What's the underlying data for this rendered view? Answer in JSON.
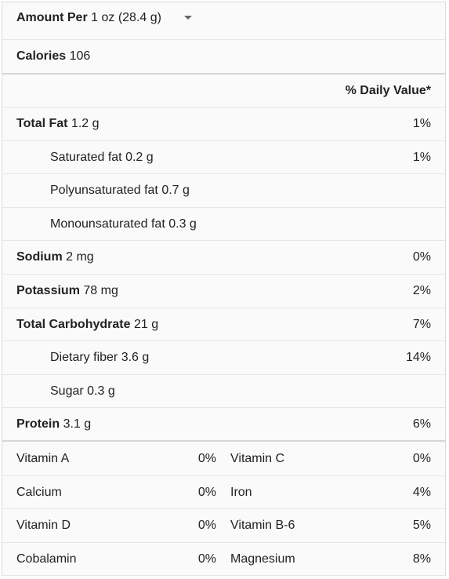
{
  "serving": {
    "label": "Amount Per",
    "value": "1 oz (28.4 g)",
    "dropdown_icon": "caret-down-icon"
  },
  "calories": {
    "label": "Calories",
    "value": "106"
  },
  "daily_value_header": "% Daily Value*",
  "nutrients": [
    {
      "label": "Total Fat",
      "amount": "1.2 g",
      "dv": "1%",
      "bold": true,
      "indent": false
    },
    {
      "label": "Saturated fat",
      "amount": "0.2 g",
      "dv": "1%",
      "bold": false,
      "indent": true
    },
    {
      "label": "Polyunsaturated fat",
      "amount": "0.7 g",
      "dv": "",
      "bold": false,
      "indent": true
    },
    {
      "label": "Monounsaturated fat",
      "amount": "0.3 g",
      "dv": "",
      "bold": false,
      "indent": true
    },
    {
      "label": "Sodium",
      "amount": "2 mg",
      "dv": "0%",
      "bold": true,
      "indent": false
    },
    {
      "label": "Potassium",
      "amount": "78 mg",
      "dv": "2%",
      "bold": true,
      "indent": false
    },
    {
      "label": "Total Carbohydrate",
      "amount": "21 g",
      "dv": "7%",
      "bold": true,
      "indent": false
    },
    {
      "label": "Dietary fiber",
      "amount": "3.6 g",
      "dv": "14%",
      "bold": false,
      "indent": true
    },
    {
      "label": "Sugar",
      "amount": "0.3 g",
      "dv": "",
      "bold": false,
      "indent": true
    },
    {
      "label": "Protein",
      "amount": "3.1 g",
      "dv": "6%",
      "bold": true,
      "indent": false
    }
  ],
  "vitamins": [
    {
      "left_label": "Vitamin A",
      "left_dv": "0%",
      "right_label": "Vitamin C",
      "right_dv": "0%"
    },
    {
      "left_label": "Calcium",
      "left_dv": "0%",
      "right_label": "Iron",
      "right_dv": "4%"
    },
    {
      "left_label": "Vitamin D",
      "left_dv": "0%",
      "right_label": "Vitamin B-6",
      "right_dv": "5%"
    },
    {
      "left_label": "Cobalamin",
      "left_dv": "0%",
      "right_label": "Magnesium",
      "right_dv": "8%"
    }
  ]
}
